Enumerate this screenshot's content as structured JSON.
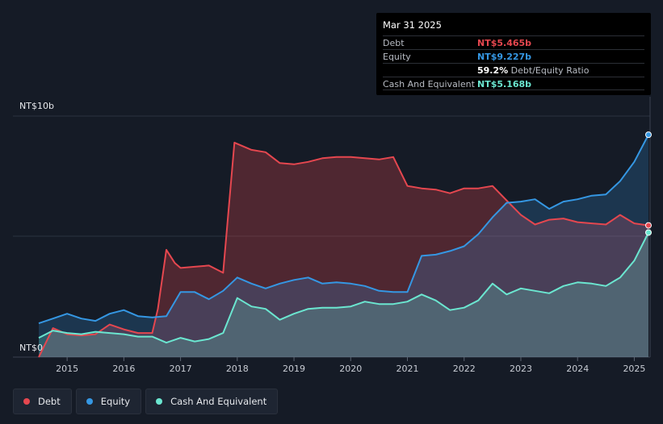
{
  "tooltip": {
    "date": "Mar 31 2025",
    "debt_label": "Debt",
    "debt_value": "NT$5.465b",
    "equity_label": "Equity",
    "equity_value": "NT$9.227b",
    "ratio_pct": "59.2%",
    "ratio_text": "Debt/Equity Ratio",
    "cash_label": "Cash And Equivalent",
    "cash_value": "NT$5.168b"
  },
  "legend": {
    "debt": "Debt",
    "equity": "Equity",
    "cash": "Cash And Equivalent"
  },
  "colors": {
    "debt": "#e5474f",
    "equity": "#3597e3",
    "cash": "#6be6d0",
    "background": "#151b26"
  },
  "chart_data": {
    "type": "area",
    "y_top_label": "NT$10b",
    "y_bottom_label": "NT$0",
    "ylim": [
      0,
      10
    ],
    "xlim": [
      2014.5,
      2025.25
    ],
    "x_ticks": [
      "2015",
      "2016",
      "2017",
      "2018",
      "2019",
      "2020",
      "2021",
      "2022",
      "2023",
      "2024",
      "2025"
    ],
    "series": [
      {
        "name": "Debt",
        "x": [
          2014.5,
          2014.75,
          2015.0,
          2015.25,
          2015.5,
          2015.75,
          2016.0,
          2016.25,
          2016.5,
          2016.6,
          2016.75,
          2016.9,
          2017.0,
          2017.25,
          2017.5,
          2017.75,
          2017.95,
          2018.25,
          2018.5,
          2018.75,
          2019.0,
          2019.25,
          2019.5,
          2019.75,
          2020.0,
          2020.25,
          2020.5,
          2020.75,
          2021.0,
          2021.25,
          2021.5,
          2021.75,
          2022.0,
          2022.25,
          2022.5,
          2022.75,
          2023.0,
          2023.25,
          2023.5,
          2023.75,
          2024.0,
          2024.25,
          2024.5,
          2024.75,
          2025.0,
          2025.25
        ],
        "values": [
          0.0,
          1.2,
          0.95,
          0.9,
          0.95,
          1.35,
          1.15,
          1.0,
          1.0,
          2.0,
          4.45,
          3.9,
          3.7,
          3.75,
          3.8,
          3.5,
          8.9,
          8.6,
          8.5,
          8.05,
          8.0,
          8.1,
          8.25,
          8.3,
          8.3,
          8.25,
          8.2,
          8.3,
          7.1,
          7.0,
          6.95,
          6.8,
          7.0,
          7.0,
          7.1,
          6.5,
          5.9,
          5.5,
          5.7,
          5.75,
          5.6,
          5.55,
          5.5,
          5.9,
          5.55,
          5.465
        ]
      },
      {
        "name": "Equity",
        "x": [
          2014.5,
          2014.75,
          2015.0,
          2015.25,
          2015.5,
          2015.75,
          2016.0,
          2016.25,
          2016.5,
          2016.75,
          2017.0,
          2017.25,
          2017.5,
          2017.75,
          2018.0,
          2018.25,
          2018.5,
          2018.75,
          2019.0,
          2019.25,
          2019.5,
          2019.75,
          2020.0,
          2020.25,
          2020.5,
          2020.75,
          2021.0,
          2021.25,
          2021.5,
          2021.75,
          2022.0,
          2022.25,
          2022.5,
          2022.75,
          2023.0,
          2023.25,
          2023.5,
          2023.75,
          2024.0,
          2024.25,
          2024.5,
          2024.75,
          2025.0,
          2025.25
        ],
        "values": [
          1.4,
          1.6,
          1.8,
          1.6,
          1.5,
          1.8,
          1.95,
          1.7,
          1.65,
          1.7,
          2.7,
          2.7,
          2.4,
          2.75,
          3.3,
          3.05,
          2.85,
          3.05,
          3.2,
          3.3,
          3.05,
          3.1,
          3.05,
          2.95,
          2.75,
          2.7,
          2.7,
          4.2,
          4.25,
          4.4,
          4.6,
          5.1,
          5.8,
          6.4,
          6.45,
          6.55,
          6.15,
          6.45,
          6.55,
          6.7,
          6.75,
          7.3,
          8.1,
          9.227
        ]
      },
      {
        "name": "Cash And Equivalent",
        "x": [
          2014.5,
          2014.75,
          2015.0,
          2015.25,
          2015.5,
          2015.75,
          2016.0,
          2016.25,
          2016.5,
          2016.75,
          2017.0,
          2017.25,
          2017.5,
          2017.75,
          2018.0,
          2018.25,
          2018.5,
          2018.75,
          2019.0,
          2019.25,
          2019.5,
          2019.75,
          2020.0,
          2020.25,
          2020.5,
          2020.75,
          2021.0,
          2021.25,
          2021.5,
          2021.75,
          2022.0,
          2022.25,
          2022.5,
          2022.75,
          2023.0,
          2023.25,
          2023.5,
          2023.75,
          2024.0,
          2024.25,
          2024.5,
          2024.75,
          2025.0,
          2025.25
        ],
        "values": [
          0.8,
          1.1,
          1.0,
          0.95,
          1.05,
          1.0,
          0.95,
          0.85,
          0.85,
          0.6,
          0.8,
          0.65,
          0.75,
          1.0,
          2.45,
          2.1,
          2.0,
          1.55,
          1.8,
          2.0,
          2.05,
          2.05,
          2.1,
          2.3,
          2.2,
          2.2,
          2.3,
          2.6,
          2.35,
          1.95,
          2.05,
          2.35,
          3.05,
          2.6,
          2.85,
          2.75,
          2.65,
          2.95,
          3.1,
          3.05,
          2.95,
          3.3,
          4.0,
          5.168
        ]
      }
    ]
  }
}
